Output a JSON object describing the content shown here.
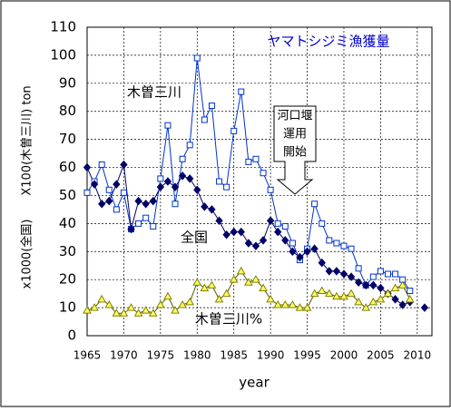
{
  "chart_data": {
    "type": "line",
    "title": "ヤマトシジミ漁獲量",
    "y_axis_labels": [
      "X100(木曽三川) ton",
      "x1000(全国)"
    ],
    "x_label": "year",
    "annotation_lines": [
      "河口堰",
      "運用",
      "開始"
    ],
    "x": [
      1965,
      1966,
      1967,
      1968,
      1969,
      1970,
      1971,
      1972,
      1973,
      1974,
      1975,
      1976,
      1977,
      1978,
      1979,
      1980,
      1981,
      1982,
      1983,
      1984,
      1985,
      1986,
      1987,
      1988,
      1989,
      1990,
      1991,
      1992,
      1993,
      1994,
      1995,
      1996,
      1997,
      1998,
      1999,
      2000,
      2001,
      2002,
      2003,
      2004,
      2005,
      2006,
      2007,
      2008,
      2009,
      2010,
      2011
    ],
    "xlim": [
      1965,
      2012
    ],
    "xticks": [
      1965,
      1970,
      1975,
      1980,
      1985,
      1990,
      1995,
      2000,
      2005,
      2010
    ],
    "ylim": [
      0,
      110
    ],
    "yticks": [
      0,
      10,
      20,
      30,
      40,
      50,
      60,
      70,
      80,
      90,
      100,
      110
    ],
    "grid": true,
    "series": [
      {
        "name": "木曽三川",
        "color": "#0033cc",
        "marker": "square",
        "values": [
          51,
          55,
          61,
          52,
          45,
          51,
          38,
          40,
          42,
          39,
          56,
          75,
          47,
          63,
          68,
          99,
          77,
          82,
          55,
          53,
          73,
          87,
          62,
          63,
          58,
          52,
          40,
          39,
          33,
          27,
          31,
          47,
          40,
          34,
          33,
          32,
          31,
          24,
          18,
          21,
          23,
          22,
          22,
          20,
          16,
          null,
          null
        ]
      },
      {
        "name": "全国",
        "color": "#000066",
        "marker": "diamond",
        "values": [
          60,
          54,
          47,
          48,
          54,
          61,
          38,
          48,
          47,
          48,
          53,
          55,
          53,
          57,
          56,
          52,
          46,
          45,
          41,
          36,
          37,
          37,
          33,
          32,
          34,
          41,
          37,
          34,
          30,
          28,
          30,
          31,
          26,
          23,
          23,
          22,
          21,
          19,
          18,
          18,
          17,
          15,
          13,
          11,
          12,
          null,
          10
        ]
      },
      {
        "name": "木曽三川%",
        "color": "#808000",
        "marker": "triangle",
        "values": [
          9,
          10,
          13,
          11,
          8,
          8,
          10,
          8,
          9,
          8,
          11,
          14,
          9,
          11,
          12,
          19,
          17,
          18,
          13,
          15,
          20,
          23,
          19,
          20,
          17,
          13,
          11,
          11,
          11,
          10,
          10,
          15,
          16,
          15,
          14,
          14,
          15,
          12,
          10,
          12,
          13,
          15,
          17,
          18,
          13,
          null,
          null
        ]
      }
    ]
  }
}
